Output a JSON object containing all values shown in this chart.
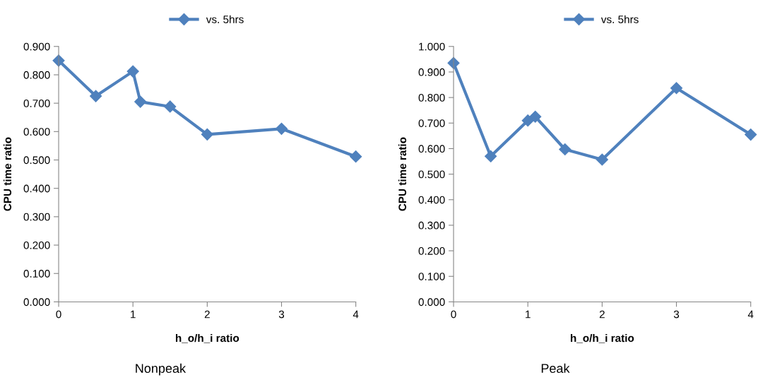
{
  "chart_data": [
    {
      "type": "line",
      "xlabel": "h_o/h_i ratio",
      "ylabel": "CPU time ratio",
      "x": [
        0,
        0.5,
        1,
        1.1,
        1.5,
        2,
        3,
        4
      ],
      "series": [
        {
          "name": "vs. 5hrs",
          "color": "#4f81bd",
          "values": [
            0.85,
            0.725,
            0.812,
            0.705,
            0.688,
            0.59,
            0.61,
            0.512
          ]
        }
      ],
      "xlim": [
        0,
        4
      ],
      "xticks": [
        0,
        1,
        2,
        3,
        4
      ],
      "ylim": [
        0,
        0.9
      ],
      "yticks": [
        {
          "value": 0,
          "label": "0.000"
        },
        {
          "value": 0.1,
          "label": "0.100"
        },
        {
          "value": 0.2,
          "label": "0.200"
        },
        {
          "value": 0.3,
          "label": "0.300"
        },
        {
          "value": 0.4,
          "label": "0.400"
        },
        {
          "value": 0.5,
          "label": "0.500"
        },
        {
          "value": 0.6,
          "label": "0.600"
        },
        {
          "value": 0.7,
          "label": "0.700"
        },
        {
          "value": 0.8,
          "label": "0.800"
        },
        {
          "value": 0.9,
          "label": "0.900"
        }
      ],
      "marker": "diamond",
      "line_style": "solid",
      "grid": false,
      "legend": "top",
      "annotations": [
        "Nonpeak"
      ]
    },
    {
      "type": "line",
      "xlabel": "h_o/h_i ratio",
      "ylabel": "CPU time ratio",
      "x": [
        0,
        0.5,
        1,
        1.1,
        1.5,
        2,
        3,
        4
      ],
      "series": [
        {
          "name": "vs. 5hrs",
          "color": "#4f81bd",
          "values": [
            0.935,
            0.57,
            0.71,
            0.725,
            0.597,
            0.557,
            0.837,
            0.655
          ]
        }
      ],
      "xlim": [
        0,
        4
      ],
      "xticks": [
        0,
        1,
        2,
        3,
        4
      ],
      "ylim": [
        0,
        1.0
      ],
      "yticks": [
        {
          "value": 0,
          "label": "0.000"
        },
        {
          "value": 0.1,
          "label": "0.100"
        },
        {
          "value": 0.2,
          "label": "0.200"
        },
        {
          "value": 0.3,
          "label": "0.300"
        },
        {
          "value": 0.4,
          "label": "0.400"
        },
        {
          "value": 0.5,
          "label": "0.500"
        },
        {
          "value": 0.6,
          "label": "0.600"
        },
        {
          "value": 0.7,
          "label": "0.700"
        },
        {
          "value": 0.8,
          "label": "0.800"
        },
        {
          "value": 0.9,
          "label": "0.900"
        },
        {
          "value": 1.0,
          "label": "1.000"
        }
      ],
      "marker": "diamond",
      "line_style": "solid",
      "grid": false,
      "legend": "top",
      "annotations": [
        "Peak"
      ]
    }
  ]
}
